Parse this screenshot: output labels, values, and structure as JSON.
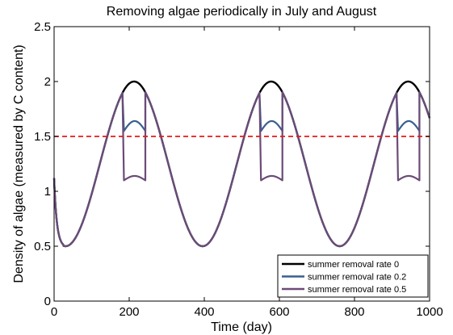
{
  "chart_data": {
    "type": "line",
    "title": "Removing algae periodically in July and August",
    "xlabel": "Time (day)",
    "ylabel": "Density of algae (measured by C content)",
    "xlim": [
      0,
      1000
    ],
    "ylim": [
      0,
      2.5
    ],
    "xticks": [
      0,
      200,
      400,
      600,
      800,
      1000
    ],
    "xtick_labels": [
      "0",
      "200",
      "400",
      "600",
      "800",
      "1000"
    ],
    "yticks": [
      0,
      0.5,
      1,
      1.5,
      2,
      2.5
    ],
    "ytick_labels": [
      "0",
      "0.5",
      "1",
      "1.5",
      "2",
      "2.5"
    ],
    "grid": false,
    "legend_position": "bottom-right",
    "threshold": {
      "y": 1.5,
      "color": "#e41a1c",
      "style": "dashed"
    },
    "baseline_model": {
      "mean": 1.25,
      "amplitude": 0.75,
      "period_days": 365,
      "peak_day": 213
    },
    "removal_window_days": [
      [
        182,
        243
      ],
      [
        547,
        608
      ],
      [
        912,
        973
      ]
    ],
    "series": [
      {
        "name": "summer removal rate 0",
        "color": "#000000",
        "x": [
          0,
          25,
          50,
          100,
          150,
          182,
          213,
          243,
          300,
          350,
          396,
          450,
          500,
          547,
          578,
          608,
          650,
          700,
          761,
          800,
          850,
          912,
          943,
          973,
          1000
        ],
        "y": [
          1.12,
          0.52,
          0.54,
          0.91,
          1.45,
          1.82,
          2.0,
          1.84,
          1.18,
          0.7,
          0.5,
          0.73,
          1.23,
          1.82,
          2.0,
          1.83,
          1.32,
          0.79,
          0.5,
          0.64,
          1.11,
          1.82,
          2.0,
          1.83,
          1.65
        ]
      },
      {
        "name": "summer removal rate 0.2",
        "color": "#3a5f8f",
        "x": [
          0,
          25,
          50,
          100,
          150,
          182,
          186,
          213,
          240,
          243,
          247,
          300,
          350,
          396,
          450,
          500,
          547,
          551,
          578,
          605,
          608,
          612,
          650,
          700,
          761,
          800,
          850,
          912,
          916,
          943,
          970,
          973,
          977,
          1000
        ],
        "y": [
          1.12,
          0.52,
          0.54,
          0.91,
          1.45,
          1.82,
          1.55,
          1.64,
          1.56,
          1.56,
          1.82,
          1.18,
          0.7,
          0.5,
          0.73,
          1.23,
          1.82,
          1.55,
          1.64,
          1.56,
          1.56,
          1.82,
          1.32,
          0.79,
          0.5,
          0.64,
          1.11,
          1.82,
          1.55,
          1.64,
          1.56,
          1.56,
          1.82,
          1.65
        ]
      },
      {
        "name": "summer removal rate 0.5",
        "color": "#6b4b77",
        "x": [
          0,
          25,
          50,
          100,
          150,
          182,
          186,
          213,
          240,
          243,
          247,
          300,
          350,
          396,
          450,
          500,
          547,
          551,
          578,
          605,
          608,
          612,
          650,
          700,
          761,
          800,
          850,
          912,
          916,
          943,
          970,
          973,
          977,
          1000
        ],
        "y": [
          1.12,
          0.52,
          0.54,
          0.91,
          1.45,
          1.82,
          1.1,
          1.14,
          1.1,
          1.1,
          1.82,
          1.18,
          0.7,
          0.5,
          0.73,
          1.23,
          1.82,
          1.1,
          1.14,
          1.1,
          1.1,
          1.82,
          1.32,
          0.79,
          0.5,
          0.64,
          1.11,
          1.82,
          1.1,
          1.14,
          1.1,
          1.1,
          1.82,
          1.65
        ]
      }
    ]
  }
}
